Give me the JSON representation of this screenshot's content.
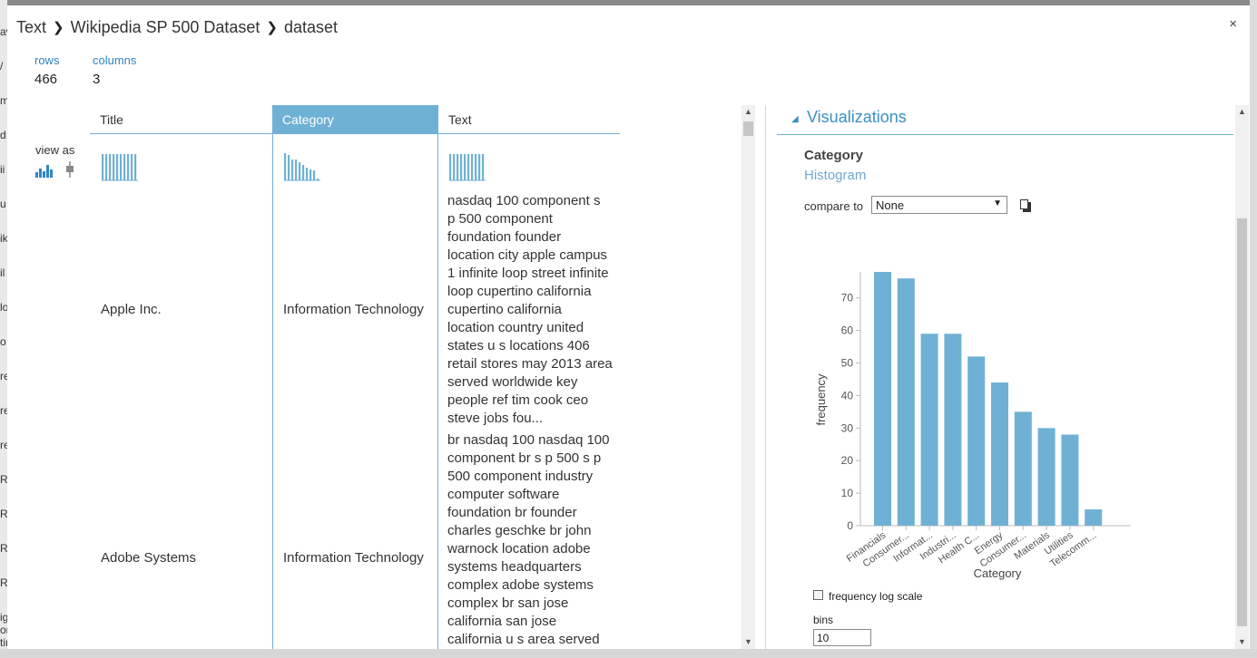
{
  "breadcrumb": [
    "Text",
    "Wikipedia SP 500 Dataset",
    "dataset"
  ],
  "close_label": "×",
  "stats": {
    "rows_label": "rows",
    "rows_value": "466",
    "columns_label": "columns",
    "columns_value": "3"
  },
  "view_as_label": "view as",
  "columns": [
    "Title",
    "Category",
    "Text"
  ],
  "selected_column": "Category",
  "rows": [
    {
      "title": "Apple Inc.",
      "category": "Information Technology",
      "text_lines": [
        "nasdaq 100 component s",
        "p 500 component",
        "foundation founder",
        "location city apple campus",
        "1 infinite loop street infinite",
        "loop cupertino california",
        "cupertino california",
        "location country united",
        "states u s locations 406",
        "retail stores may 2013 area",
        "served worldwide key",
        "people ref tim cook ceo",
        "steve jobs fou..."
      ]
    },
    {
      "title": "Adobe Systems",
      "category": "Information Technology",
      "text_lines": [
        "br nasdaq 100 nasdaq 100",
        "component br s p 500 s p",
        "500 component industry",
        "computer software",
        "foundation br founder",
        "charles geschke br john",
        "warnock location adobe",
        "systems headquarters",
        "complex adobe systems",
        "complex br san jose",
        "california san jose",
        "california u s area served"
      ]
    }
  ],
  "visualizations": {
    "title": "Visualizations",
    "column_name": "Category",
    "chart_kind": "Histogram",
    "compare_label": "compare to",
    "compare_value": "None",
    "log_scale_label": "frequency log scale",
    "bins_label": "bins",
    "bins_value": "10"
  },
  "chart_data": {
    "type": "bar",
    "xlabel": "Category",
    "ylabel": "frequency",
    "ylim": [
      0,
      78
    ],
    "yticks": [
      0,
      10,
      20,
      30,
      40,
      50,
      60,
      70
    ],
    "categories": [
      "Financials",
      "Consumer...",
      "Informat...",
      "Industri...",
      "Health C...",
      "Energy",
      "Consumer...",
      "Materials",
      "Utilities",
      "Telecomm..."
    ],
    "values": [
      78,
      76,
      59,
      59,
      52,
      44,
      35,
      30,
      28,
      5
    ],
    "color": "#6fb1d4"
  },
  "colors": {
    "accent": "#6fb1d4",
    "link": "#2d85c5"
  },
  "bg_glyphs": [
    "av",
    "/",
    "m",
    "d",
    "ii",
    "u",
    "ik",
    "il",
    "lo",
    "o",
    "re",
    "re",
    "re",
    "R",
    "R",
    "R",
    "R",
    "ight on-time perfo..."
  ]
}
